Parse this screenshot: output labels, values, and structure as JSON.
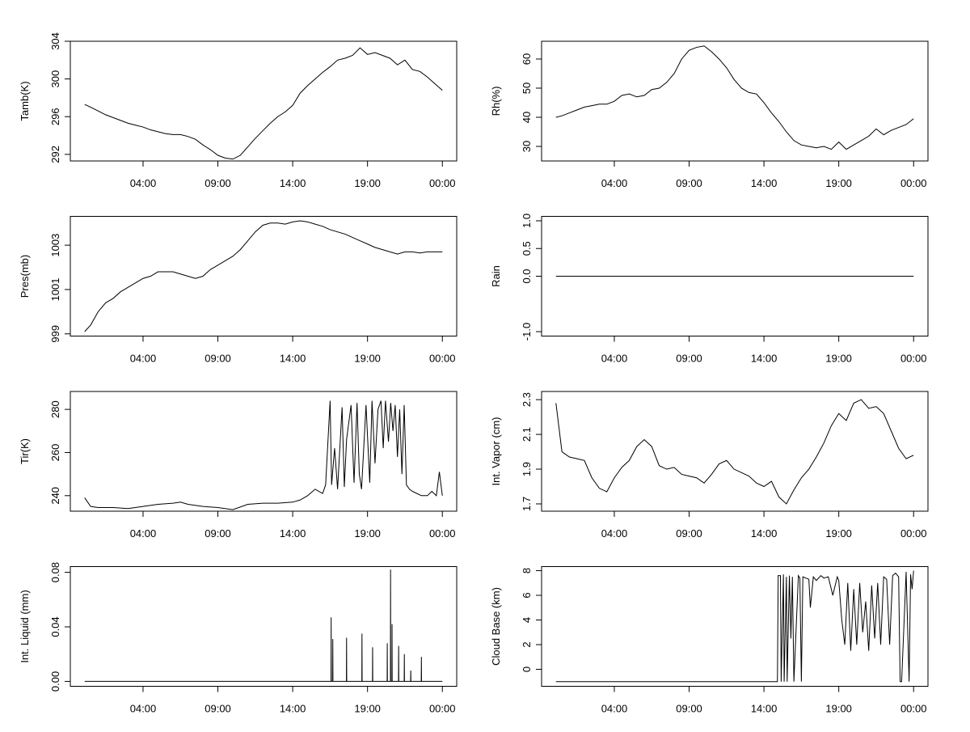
{
  "chart_data": [
    {
      "type": "line",
      "ylabel": "Tamb(K)",
      "color": "#000000",
      "x": [
        0.1,
        0.5,
        1,
        1.5,
        2,
        2.5,
        3,
        3.5,
        4,
        4.5,
        5,
        5.5,
        6,
        6.5,
        7,
        7.5,
        8,
        8.5,
        9,
        9.5,
        10,
        10.5,
        11,
        11.5,
        12,
        12.5,
        13,
        13.5,
        14,
        14.5,
        15,
        15.5,
        16,
        16.5,
        17,
        17.5,
        18,
        18.5,
        19,
        19.5,
        20,
        20.5,
        21,
        21.5,
        22,
        22.5,
        23,
        23.5,
        24
      ],
      "values": [
        297.3,
        297.0,
        296.6,
        296.2,
        295.9,
        295.6,
        295.3,
        295.1,
        294.9,
        294.6,
        294.4,
        294.2,
        294.1,
        294.1,
        293.9,
        293.6,
        293.0,
        292.5,
        291.9,
        291.6,
        291.5,
        291.9,
        292.8,
        293.7,
        294.5,
        295.3,
        296.0,
        296.5,
        297.2,
        298.5,
        299.3,
        300.0,
        300.7,
        301.3,
        302.0,
        302.2,
        302.5,
        303.3,
        302.6,
        302.8,
        302.5,
        302.2,
        301.5,
        302.0,
        301.0,
        300.8,
        300.2,
        299.5,
        298.8
      ],
      "xlim": [
        -0.86,
        24.96
      ],
      "xticks": [
        {
          "value": 4,
          "label": "04:00"
        },
        {
          "value": 9,
          "label": "09:00"
        },
        {
          "value": 14,
          "label": "14:00"
        },
        {
          "value": 19,
          "label": "19:00"
        },
        {
          "value": 24,
          "label": "00:00"
        }
      ],
      "ylim": [
        291.3,
        304.0
      ],
      "yticks": [
        292,
        296,
        300,
        304
      ]
    },
    {
      "type": "line",
      "ylabel": "Rh(%)",
      "color": "#000000",
      "x": [
        0.1,
        0.5,
        1,
        1.5,
        2,
        2.5,
        3,
        3.5,
        4,
        4.5,
        5,
        5.5,
        6,
        6.5,
        7,
        7.5,
        8,
        8.5,
        9,
        9.5,
        10,
        10.5,
        11,
        11.5,
        12,
        12.5,
        13,
        13.5,
        14,
        14.5,
        15,
        15.5,
        16,
        16.5,
        17,
        17.5,
        18,
        18.5,
        19,
        19.5,
        20,
        20.5,
        21,
        21.5,
        22,
        22.5,
        23,
        23.5,
        24
      ],
      "values": [
        40.0,
        40.5,
        41.5,
        42.5,
        43.5,
        44.0,
        44.5,
        44.5,
        45.5,
        47.5,
        48.0,
        47.0,
        47.5,
        49.5,
        50.0,
        52.0,
        55.0,
        60.0,
        63.0,
        64.0,
        64.5,
        62.5,
        60.0,
        57.0,
        53.0,
        50.0,
        48.5,
        48.0,
        45.0,
        41.5,
        38.5,
        35.0,
        32.0,
        30.5,
        30.0,
        29.5,
        30.0,
        29.0,
        31.5,
        29.0,
        30.5,
        32.0,
        33.5,
        36.0,
        34.0,
        35.5,
        36.5,
        37.5,
        39.5
      ],
      "xlim": [
        -0.86,
        24.96
      ],
      "xticks": [
        {
          "value": 4,
          "label": "04:00"
        },
        {
          "value": 9,
          "label": "09:00"
        },
        {
          "value": 14,
          "label": "14:00"
        },
        {
          "value": 19,
          "label": "19:00"
        },
        {
          "value": 24,
          "label": "00:00"
        }
      ],
      "ylim": [
        25.0,
        66.1
      ],
      "yticks": [
        30,
        40,
        50,
        60
      ]
    },
    {
      "type": "line",
      "ylabel": "Pres(mb)",
      "color": "#000000",
      "x": [
        0.1,
        0.5,
        1,
        1.5,
        2,
        2.5,
        3,
        3.5,
        4,
        4.5,
        5,
        5.5,
        6,
        6.5,
        7,
        7.5,
        8,
        8.5,
        9,
        9.5,
        10,
        10.5,
        11,
        11.5,
        12,
        12.5,
        13,
        13.5,
        14,
        14.5,
        15,
        15.5,
        16,
        16.5,
        17,
        17.5,
        18,
        18.5,
        19,
        19.5,
        20,
        20.5,
        21,
        21.5,
        22,
        22.5,
        23,
        23.5,
        24
      ],
      "values": [
        999.1,
        999.4,
        1000.0,
        1000.4,
        1000.6,
        1000.9,
        1001.1,
        1001.3,
        1001.5,
        1001.6,
        1001.8,
        1001.8,
        1001.8,
        1001.7,
        1001.6,
        1001.5,
        1001.6,
        1001.9,
        1002.1,
        1002.3,
        1002.5,
        1002.8,
        1003.2,
        1003.6,
        1003.9,
        1004.0,
        1004.0,
        1003.95,
        1004.05,
        1004.1,
        1004.05,
        1003.95,
        1003.85,
        1003.7,
        1003.6,
        1003.5,
        1003.35,
        1003.2,
        1003.05,
        1002.9,
        1002.8,
        1002.7,
        1002.6,
        1002.7,
        1002.7,
        1002.65,
        1002.7,
        1002.7,
        1002.7
      ],
      "xlim": [
        -0.86,
        24.96
      ],
      "xticks": [
        {
          "value": 4,
          "label": "04:00"
        },
        {
          "value": 9,
          "label": "09:00"
        },
        {
          "value": 14,
          "label": "14:00"
        },
        {
          "value": 19,
          "label": "19:00"
        },
        {
          "value": 24,
          "label": "00:00"
        }
      ],
      "ylim": [
        998.9,
        1004.3
      ],
      "yticks": [
        999,
        1001,
        1003
      ]
    },
    {
      "type": "line",
      "ylabel": "Rain",
      "color": "#000000",
      "x": [
        0.1,
        24
      ],
      "values": [
        0,
        0
      ],
      "xlim": [
        -0.86,
        24.96
      ],
      "xticks": [
        {
          "value": 4,
          "label": "04:00"
        },
        {
          "value": 9,
          "label": "09:00"
        },
        {
          "value": 14,
          "label": "14:00"
        },
        {
          "value": 19,
          "label": "19:00"
        },
        {
          "value": 24,
          "label": "00:00"
        }
      ],
      "ylim": [
        -1.08,
        1.08
      ],
      "yticks": [
        {
          "value": -1,
          "label": "-1.0"
        },
        {
          "value": 0,
          "label": "0.0"
        },
        {
          "value": 0.5,
          "label": "0.5"
        },
        {
          "value": 1,
          "label": "1.0"
        }
      ]
    },
    {
      "type": "line",
      "ylabel": "Tir(K)",
      "color": "#000000",
      "x": [
        0.1,
        0.5,
        1,
        2,
        3,
        4,
        5,
        6,
        6.5,
        7,
        8,
        9,
        10,
        11,
        12,
        13,
        14,
        14.5,
        15,
        15.5,
        16,
        16.2,
        16.5,
        16.6,
        16.8,
        17,
        17.3,
        17.45,
        17.6,
        17.9,
        18.1,
        18.3,
        18.45,
        18.6,
        18.9,
        19.15,
        19.3,
        19.5,
        19.7,
        19.9,
        20.05,
        20.2,
        20.4,
        20.55,
        20.7,
        20.85,
        21.0,
        21.15,
        21.3,
        21.45,
        21.6,
        21.8,
        22.0,
        22.3,
        22.6,
        23.0,
        23.3,
        23.6,
        23.8,
        24
      ],
      "values": [
        239,
        235,
        234.5,
        234.5,
        234,
        235,
        236,
        236.5,
        237,
        236,
        235,
        234.5,
        233.5,
        236,
        236.5,
        236.5,
        237,
        238,
        240,
        243,
        241,
        245,
        284,
        245,
        262,
        243,
        281,
        244,
        266,
        282,
        246,
        283,
        250,
        243,
        282,
        246,
        284,
        255,
        280,
        284,
        262,
        284,
        265,
        283,
        270,
        282,
        258,
        280,
        250,
        282,
        245,
        243,
        242,
        241,
        240,
        240,
        242,
        240,
        251,
        240
      ],
      "xlim": [
        -0.86,
        24.96
      ],
      "xticks": [
        {
          "value": 4,
          "label": "04:00"
        },
        {
          "value": 9,
          "label": "09:00"
        },
        {
          "value": 14,
          "label": "14:00"
        },
        {
          "value": 19,
          "label": "19:00"
        },
        {
          "value": 24,
          "label": "00:00"
        }
      ],
      "ylim": [
        232.8,
        288.3
      ],
      "yticks": [
        240,
        260,
        280
      ]
    },
    {
      "type": "line",
      "ylabel": "Int. Vapor (cm)",
      "color": "#000000",
      "x": [
        0.1,
        0.5,
        1,
        1.5,
        2,
        2.5,
        3,
        3.5,
        4,
        4.5,
        5,
        5.5,
        6,
        6.5,
        7,
        7.5,
        8,
        8.5,
        9,
        9.5,
        10,
        10.5,
        11,
        11.5,
        12,
        12.5,
        13,
        13.5,
        14,
        14.5,
        15,
        15.5,
        16,
        16.5,
        17,
        17.5,
        18,
        18.5,
        19,
        19.5,
        20,
        20.5,
        21,
        21.5,
        22,
        22.5,
        23,
        23.5,
        24
      ],
      "values": [
        2.28,
        2.0,
        1.97,
        1.96,
        1.95,
        1.85,
        1.79,
        1.77,
        1.85,
        1.91,
        1.95,
        2.03,
        2.07,
        2.03,
        1.92,
        1.9,
        1.91,
        1.87,
        1.86,
        1.85,
        1.82,
        1.87,
        1.93,
        1.95,
        1.9,
        1.88,
        1.86,
        1.82,
        1.8,
        1.83,
        1.74,
        1.7,
        1.78,
        1.85,
        1.9,
        1.97,
        2.05,
        2.15,
        2.22,
        2.18,
        2.28,
        2.3,
        2.25,
        2.26,
        2.22,
        2.12,
        2.02,
        1.96,
        1.98
      ],
      "xlim": [
        -0.86,
        24.96
      ],
      "xticks": [
        {
          "value": 4,
          "label": "04:00"
        },
        {
          "value": 9,
          "label": "09:00"
        },
        {
          "value": 14,
          "label": "14:00"
        },
        {
          "value": 19,
          "label": "19:00"
        },
        {
          "value": 24,
          "label": "00:00"
        }
      ],
      "ylim": [
        1.658,
        2.347
      ],
      "yticks": [
        1.7,
        1.9,
        2.1,
        2.3
      ]
    },
    {
      "type": "line",
      "ylabel": "Int. Liquid (mm)",
      "color": "#000000",
      "x": [
        0.1,
        16.56,
        16.57,
        16.58,
        16.67,
        16.68,
        16.69,
        17.59,
        17.6,
        17.61,
        18.62,
        18.63,
        18.64,
        19.33,
        19.34,
        19.35,
        20.31,
        20.32,
        20.33,
        20.53,
        20.54,
        20.55,
        20.63,
        20.64,
        20.65,
        21.07,
        21.08,
        21.09,
        21.45,
        21.46,
        21.47,
        21.88,
        21.89,
        21.9,
        22.59,
        22.6,
        22.61,
        24
      ],
      "values": [
        0,
        0,
        0.047,
        0,
        0,
        0.031,
        0,
        0,
        0.032,
        0,
        0,
        0.035,
        0,
        0,
        0.025,
        0,
        0,
        0.028,
        0,
        0,
        0.082,
        0,
        0,
        0.042,
        0,
        0,
        0.026,
        0,
        0,
        0.02,
        0,
        0,
        0.008,
        0,
        0,
        0.018,
        0,
        0
      ],
      "xlim": [
        -0.86,
        24.96
      ],
      "xticks": [
        {
          "value": 4,
          "label": "04:00"
        },
        {
          "value": 9,
          "label": "09:00"
        },
        {
          "value": 14,
          "label": "14:00"
        },
        {
          "value": 19,
          "label": "19:00"
        },
        {
          "value": 24,
          "label": "00:00"
        }
      ],
      "ylim": [
        -0.0036,
        0.0842
      ],
      "yticks": [
        {
          "value": 0,
          "label": "0.00"
        },
        {
          "value": 0.04,
          "label": "0.04"
        },
        {
          "value": 0.08,
          "label": "0.08"
        }
      ]
    },
    {
      "type": "line",
      "ylabel": "Cloud Base (km)",
      "color": "#000000",
      "x": [
        0.1,
        14.9,
        14.95,
        15.1,
        15.15,
        15.3,
        15.35,
        15.5,
        15.55,
        15.7,
        15.8,
        15.9,
        16.0,
        16.3,
        16.4,
        16.5,
        16.6,
        17.0,
        17.1,
        17.3,
        17.5,
        17.8,
        18.0,
        18.3,
        18.6,
        18.9,
        19.0,
        19.2,
        19.4,
        19.6,
        19.8,
        20.0,
        20.2,
        20.4,
        20.6,
        20.8,
        21.0,
        21.2,
        21.4,
        21.6,
        21.8,
        22.0,
        22.2,
        22.4,
        22.6,
        22.8,
        23.0,
        23.1,
        23.2,
        23.5,
        23.7,
        23.8,
        23.9,
        24
      ],
      "values": [
        -1,
        -1,
        7.6,
        7.6,
        -1,
        7.7,
        -1,
        7.5,
        -1,
        7.6,
        2.5,
        7.5,
        -1,
        7.6,
        7.4,
        -1,
        7.5,
        7.3,
        5.0,
        7.5,
        7.2,
        7.6,
        7.4,
        7.5,
        6.0,
        7.5,
        7.2,
        4.0,
        2.0,
        7.0,
        1.5,
        6.5,
        2.0,
        7.0,
        3.0,
        5.5,
        1.5,
        6.8,
        2.5,
        7.0,
        2.0,
        7.5,
        7.3,
        2.0,
        7.6,
        7.8,
        7.5,
        -1,
        -1,
        7.9,
        -1,
        7.7,
        6.5,
        8.0
      ],
      "xlim": [
        -0.86,
        24.96
      ],
      "xticks": [
        {
          "value": 4,
          "label": "04:00"
        },
        {
          "value": 9,
          "label": "09:00"
        },
        {
          "value": 14,
          "label": "14:00"
        },
        {
          "value": 19,
          "label": "19:00"
        },
        {
          "value": 24,
          "label": "00:00"
        }
      ],
      "ylim": [
        -1.38,
        8.33
      ],
      "yticks": [
        0,
        2,
        4,
        6,
        8
      ]
    }
  ]
}
